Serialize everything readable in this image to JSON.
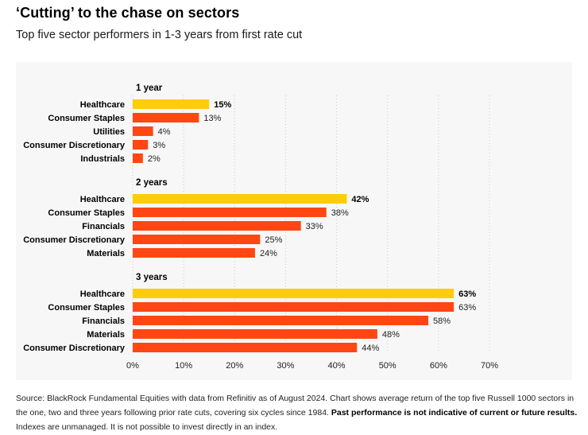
{
  "header": {
    "title": "‘Cutting’ to the chase on sectors",
    "subtitle": "Top five sector performers in 1-3 years from first rate cut"
  },
  "source": {
    "prefix": "Source: BlackRock Fundamental Equities with data from Refinitiv as of August 2024. Chart shows average return of the top five Russell 1000 sectors in the one, two and three years following prior rate cuts, covering six cycles since 1984. ",
    "bold": "Past performance is not indicative of current or future results.",
    "suffix": " Indexes are unmanaged. It is not possible to invest directly in an index."
  },
  "colors": {
    "highlight": "#fecc09",
    "bar": "#ff4613",
    "panel": "#f7f7f7"
  },
  "chart_data": {
    "type": "bar",
    "orientation": "horizontal",
    "title": "‘Cutting’ to the chase on sectors",
    "xlim": [
      0,
      70
    ],
    "ticks": [
      0,
      10,
      20,
      30,
      40,
      50,
      60,
      70
    ],
    "tick_labels": [
      "0%",
      "10%",
      "20%",
      "30%",
      "40%",
      "50%",
      "60%",
      "70%"
    ],
    "grid": true,
    "groups": [
      {
        "label": "1 year",
        "categories": [
          "Healthcare",
          "Consumer Staples",
          "Utilities",
          "Consumer Discretionary",
          "Industrials"
        ],
        "values": [
          15,
          13,
          4,
          3,
          2
        ],
        "labels": [
          "15%",
          "13%",
          "4%",
          "3%",
          "2%"
        ],
        "highlight": [
          true,
          false,
          false,
          false,
          false
        ]
      },
      {
        "label": "2 years",
        "categories": [
          "Healthcare",
          "Consumer Staples",
          "Financials",
          "Consumer Discretionary",
          "Materials"
        ],
        "values": [
          42,
          38,
          33,
          25,
          24
        ],
        "labels": [
          "42%",
          "38%",
          "33%",
          "25%",
          "24%"
        ],
        "highlight": [
          true,
          false,
          false,
          false,
          false
        ]
      },
      {
        "label": "3 years",
        "categories": [
          "Healthcare",
          "Consumer Staples",
          "Financials",
          "Materials",
          "Consumer Discretionary"
        ],
        "values": [
          63,
          63,
          58,
          48,
          44
        ],
        "labels": [
          "63%",
          "63%",
          "58%",
          "48%",
          "44%"
        ],
        "highlight": [
          true,
          false,
          false,
          false,
          false
        ]
      }
    ]
  }
}
